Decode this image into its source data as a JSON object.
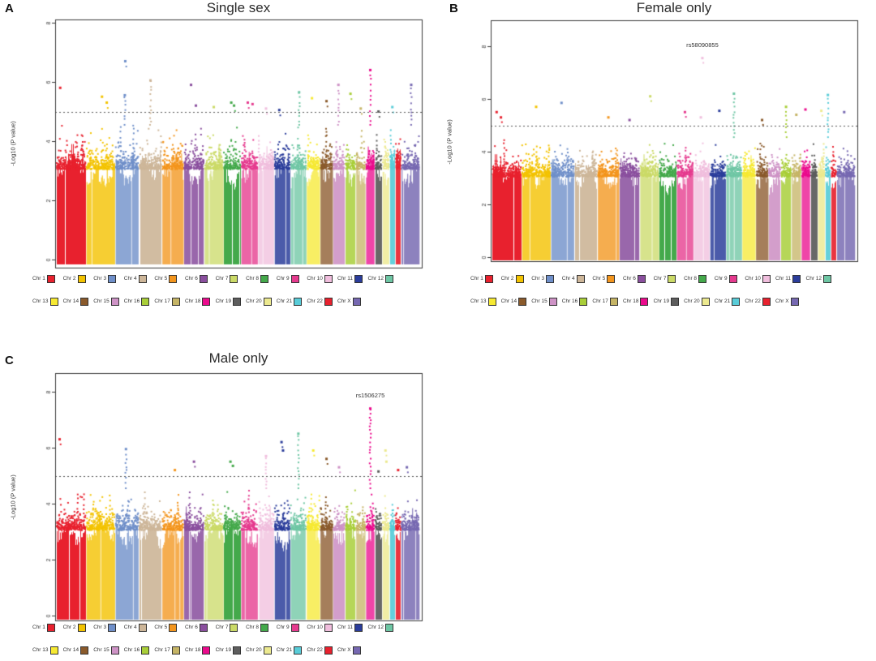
{
  "figure": {
    "background": "#ffffff",
    "axis_color": "#3a3a3a",
    "threshold_color": "#555555",
    "text_color": "#2b2b2b"
  },
  "legend": {
    "chromosomes": [
      {
        "label": "Chr 1",
        "color": "#e8212e",
        "rel": 1.0
      },
      {
        "label": "Chr 2",
        "color": "#f3c300",
        "rel": 0.98
      },
      {
        "label": "Chr 3",
        "color": "#6f8fc9",
        "rel": 0.8
      },
      {
        "label": "Chr 4",
        "color": "#cdb699",
        "rel": 0.77
      },
      {
        "label": "Chr 5",
        "color": "#f3951d",
        "rel": 0.73
      },
      {
        "label": "Chr 6",
        "color": "#8a4f9e",
        "rel": 0.69
      },
      {
        "label": "Chr 7",
        "color": "#cbda67",
        "rel": 0.64
      },
      {
        "label": "Chr 8",
        "color": "#44a94b",
        "rel": 0.59
      },
      {
        "label": "Chr 9",
        "color": "#e53a8e",
        "rel": 0.57
      },
      {
        "label": "Chr 10",
        "color": "#f0bedd",
        "rel": 0.55
      },
      {
        "label": "Chr 11",
        "color": "#2b3d9b",
        "rel": 0.54
      },
      {
        "label": "Chr 12",
        "color": "#6ec6a4",
        "rel": 0.54
      },
      {
        "label": "Chr 13",
        "color": "#f6e932",
        "rel": 0.46
      },
      {
        "label": "Chr 14",
        "color": "#8a5a2b",
        "rel": 0.43
      },
      {
        "label": "Chr 15",
        "color": "#ce93c6",
        "rel": 0.41
      },
      {
        "label": "Chr 16",
        "color": "#a9ce39",
        "rel": 0.36
      },
      {
        "label": "Chr 17",
        "color": "#c5b465",
        "rel": 0.33
      },
      {
        "label": "Chr 18",
        "color": "#ea0a8c",
        "rel": 0.31
      },
      {
        "label": "Chr 19",
        "color": "#5d5d5d",
        "rel": 0.24
      },
      {
        "label": "Chr 20",
        "color": "#ece98f",
        "rel": 0.25
      },
      {
        "label": "Chr 21",
        "color": "#59ccd8",
        "rel": 0.19
      },
      {
        "label": "Chr 22",
        "color": "#e8212e",
        "rel": 0.2
      },
      {
        "label": "Chr X",
        "color": "#7668b1",
        "rel": 0.62
      }
    ]
  },
  "chart_data": [
    {
      "type": "scatter",
      "panel_label": "A",
      "title": "Single sex",
      "ylabel": "-Log10 (P value)",
      "yticks": [
        0,
        2,
        4,
        6,
        8
      ],
      "ylim": [
        0,
        8.2
      ],
      "threshold": 5,
      "grid": false,
      "legend_position": "bottom",
      "annotation": null,
      "series": [
        {
          "name": "Chr 1",
          "base_max": 4.7,
          "peaks": [
            [
              0.12,
              5.8,
              0
            ]
          ]
        },
        {
          "name": "Chr 2",
          "base_max": 4.6,
          "peaks": [
            [
              0.55,
              5.5,
              0
            ],
            [
              0.72,
              5.3,
              0
            ]
          ]
        },
        {
          "name": "Chr 3",
          "base_max": 4.7,
          "peaks": [
            [
              0.42,
              6.7,
              0
            ],
            [
              0.4,
              5.55,
              1
            ]
          ]
        },
        {
          "name": "Chr 4",
          "base_max": 4.6,
          "peaks": [
            [
              0.5,
              6.05,
              1
            ]
          ]
        },
        {
          "name": "Chr 5",
          "base_max": 4.4,
          "peaks": []
        },
        {
          "name": "Chr 6",
          "base_max": 4.6,
          "peaks": [
            [
              0.35,
              5.9,
              0
            ],
            [
              0.6,
              5.2,
              0
            ]
          ]
        },
        {
          "name": "Chr 7",
          "base_max": 4.7,
          "peaks": [
            [
              0.5,
              5.15,
              0
            ]
          ]
        },
        {
          "name": "Chr 8",
          "base_max": 4.8,
          "peaks": [
            [
              0.45,
              5.3,
              0
            ],
            [
              0.62,
              5.2,
              0
            ]
          ]
        },
        {
          "name": "Chr 9",
          "base_max": 4.6,
          "peaks": [
            [
              0.4,
              5.3,
              0
            ],
            [
              0.7,
              5.25,
              0
            ]
          ]
        },
        {
          "name": "Chr 10",
          "base_max": 4.4,
          "peaks": [
            [
              0.5,
              5.1,
              0
            ]
          ]
        },
        {
          "name": "Chr 11",
          "base_max": 4.5,
          "peaks": [
            [
              0.3,
              5.05,
              0
            ]
          ]
        },
        {
          "name": "Chr 12",
          "base_max": 4.7,
          "peaks": [
            [
              0.55,
              5.65,
              1
            ]
          ]
        },
        {
          "name": "Chr 13",
          "base_max": 4.6,
          "peaks": [
            [
              0.4,
              5.45,
              0
            ]
          ]
        },
        {
          "name": "Chr 14",
          "base_max": 4.7,
          "peaks": [
            [
              0.5,
              5.35,
              0
            ]
          ]
        },
        {
          "name": "Chr 15",
          "base_max": 4.5,
          "peaks": [
            [
              0.45,
              5.9,
              1
            ]
          ]
        },
        {
          "name": "Chr 16",
          "base_max": 4.6,
          "peaks": [
            [
              0.5,
              5.6,
              0
            ]
          ]
        },
        {
          "name": "Chr 17",
          "base_max": 4.4,
          "peaks": [
            [
              0.5,
              5.1,
              0
            ]
          ]
        },
        {
          "name": "Chr 18",
          "base_max": 4.5,
          "peaks": [
            [
              0.5,
              6.4,
              1
            ]
          ]
        },
        {
          "name": "Chr 19",
          "base_max": 4.6,
          "peaks": [
            [
              0.5,
              5.0,
              0
            ]
          ]
        },
        {
          "name": "Chr 20",
          "base_max": 4.3,
          "peaks": []
        },
        {
          "name": "Chr 21",
          "base_max": 4.4,
          "peaks": [
            [
              0.5,
              5.15,
              0
            ]
          ]
        },
        {
          "name": "Chr 22",
          "base_max": 4.3,
          "peaks": []
        },
        {
          "name": "Chr X",
          "base_max": 4.4,
          "peaks": [
            [
              0.55,
              5.9,
              1
            ]
          ]
        }
      ]
    },
    {
      "type": "scatter",
      "panel_label": "B",
      "title": "Female only",
      "ylabel": "-Log10 (P value)",
      "yticks": [
        0,
        2,
        4,
        6,
        8
      ],
      "ylim": [
        0,
        9.0
      ],
      "threshold": 5,
      "grid": false,
      "legend_position": "bottom",
      "annotation": {
        "text": "rs58090855",
        "chrom": "Chr 10",
        "value": 7.55
      },
      "series": [
        {
          "name": "Chr 1",
          "base_max": 4.6,
          "peaks": [
            [
              0.15,
              5.5,
              0
            ],
            [
              0.3,
              5.3,
              0
            ]
          ]
        },
        {
          "name": "Chr 2",
          "base_max": 4.5,
          "peaks": [
            [
              0.5,
              5.7,
              0
            ]
          ]
        },
        {
          "name": "Chr 3",
          "base_max": 4.6,
          "peaks": [
            [
              0.45,
              5.85,
              0
            ]
          ]
        },
        {
          "name": "Chr 4",
          "base_max": 4.3,
          "peaks": []
        },
        {
          "name": "Chr 5",
          "base_max": 4.5,
          "peaks": [
            [
              0.5,
              5.3,
              0
            ]
          ]
        },
        {
          "name": "Chr 6",
          "base_max": 4.4,
          "peaks": [
            [
              0.5,
              5.2,
              0
            ]
          ]
        },
        {
          "name": "Chr 7",
          "base_max": 4.5,
          "peaks": [
            [
              0.55,
              6.1,
              0
            ]
          ]
        },
        {
          "name": "Chr 8",
          "base_max": 4.4,
          "peaks": []
        },
        {
          "name": "Chr 9",
          "base_max": 4.5,
          "peaks": [
            [
              0.5,
              5.5,
              0
            ]
          ]
        },
        {
          "name": "Chr 10",
          "base_max": 4.4,
          "peaks": [
            [
              0.55,
              7.55,
              0
            ],
            [
              0.45,
              5.3,
              0
            ]
          ]
        },
        {
          "name": "Chr 11",
          "base_max": 4.5,
          "peaks": [
            [
              0.6,
              5.55,
              0
            ]
          ]
        },
        {
          "name": "Chr 12",
          "base_max": 4.6,
          "peaks": [
            [
              0.5,
              6.2,
              1
            ]
          ]
        },
        {
          "name": "Chr 13",
          "base_max": 4.4,
          "peaks": []
        },
        {
          "name": "Chr 14",
          "base_max": 4.5,
          "peaks": [
            [
              0.5,
              5.2,
              0
            ]
          ]
        },
        {
          "name": "Chr 15",
          "base_max": 4.3,
          "peaks": []
        },
        {
          "name": "Chr 16",
          "base_max": 4.6,
          "peaks": [
            [
              0.5,
              5.7,
              1
            ]
          ]
        },
        {
          "name": "Chr 17",
          "base_max": 4.4,
          "peaks": [
            [
              0.5,
              5.4,
              0
            ]
          ]
        },
        {
          "name": "Chr 18",
          "base_max": 4.5,
          "peaks": [
            [
              0.45,
              5.6,
              0
            ]
          ]
        },
        {
          "name": "Chr 19",
          "base_max": 4.4,
          "peaks": []
        },
        {
          "name": "Chr 20",
          "base_max": 4.4,
          "peaks": [
            [
              0.5,
              5.55,
              0
            ]
          ]
        },
        {
          "name": "Chr 21",
          "base_max": 4.3,
          "peaks": [
            [
              0.5,
              6.15,
              1
            ]
          ]
        },
        {
          "name": "Chr 22",
          "base_max": 4.3,
          "peaks": []
        },
        {
          "name": "Chr X",
          "base_max": 4.4,
          "peaks": [
            [
              0.4,
              5.5,
              0
            ]
          ]
        }
      ]
    },
    {
      "type": "scatter",
      "panel_label": "C",
      "title": "Male only",
      "ylabel": "-Log10 (P value)",
      "yticks": [
        0,
        2,
        4,
        6,
        8
      ],
      "ylim": [
        0,
        8.7
      ],
      "threshold": 5,
      "grid": false,
      "legend_position": "bottom",
      "annotation": {
        "text": "rs1506275",
        "chrom": "Chr 18",
        "value": 7.4
      },
      "series": [
        {
          "name": "Chr 1",
          "base_max": 4.6,
          "peaks": [
            [
              0.1,
              6.3,
              0
            ]
          ]
        },
        {
          "name": "Chr 2",
          "base_max": 4.5,
          "peaks": []
        },
        {
          "name": "Chr 3",
          "base_max": 4.6,
          "peaks": [
            [
              0.45,
              5.95,
              1
            ]
          ]
        },
        {
          "name": "Chr 4",
          "base_max": 4.5,
          "peaks": []
        },
        {
          "name": "Chr 5",
          "base_max": 4.4,
          "peaks": [
            [
              0.6,
              5.2,
              0
            ]
          ]
        },
        {
          "name": "Chr 6",
          "base_max": 4.5,
          "peaks": [
            [
              0.5,
              5.5,
              0
            ]
          ]
        },
        {
          "name": "Chr 7",
          "base_max": 4.5,
          "peaks": []
        },
        {
          "name": "Chr 8",
          "base_max": 4.7,
          "peaks": [
            [
              0.4,
              5.5,
              0
            ],
            [
              0.55,
              5.35,
              0
            ]
          ]
        },
        {
          "name": "Chr 9",
          "base_max": 4.5,
          "peaks": []
        },
        {
          "name": "Chr 10",
          "base_max": 4.5,
          "peaks": [
            [
              0.5,
              5.7,
              1
            ]
          ]
        },
        {
          "name": "Chr 11",
          "base_max": 4.6,
          "peaks": [
            [
              0.45,
              6.2,
              0
            ],
            [
              0.55,
              5.9,
              0
            ]
          ]
        },
        {
          "name": "Chr 12",
          "base_max": 4.5,
          "peaks": [
            [
              0.5,
              6.5,
              1
            ]
          ]
        },
        {
          "name": "Chr 13",
          "base_max": 4.5,
          "peaks": [
            [
              0.5,
              5.9,
              0
            ]
          ]
        },
        {
          "name": "Chr 14",
          "base_max": 4.6,
          "peaks": [
            [
              0.5,
              5.6,
              0
            ]
          ]
        },
        {
          "name": "Chr 15",
          "base_max": 4.4,
          "peaks": [
            [
              0.5,
              5.3,
              0
            ]
          ]
        },
        {
          "name": "Chr 16",
          "base_max": 4.5,
          "peaks": []
        },
        {
          "name": "Chr 17",
          "base_max": 4.4,
          "peaks": []
        },
        {
          "name": "Chr 18",
          "base_max": 4.4,
          "peaks": [
            [
              0.5,
              7.4,
              1
            ]
          ]
        },
        {
          "name": "Chr 19",
          "base_max": 4.6,
          "peaks": [
            [
              0.5,
              5.15,
              0
            ]
          ]
        },
        {
          "name": "Chr 20",
          "base_max": 4.5,
          "peaks": [
            [
              0.45,
              5.9,
              0
            ],
            [
              0.6,
              5.5,
              0
            ]
          ]
        },
        {
          "name": "Chr 21",
          "base_max": 4.3,
          "peaks": []
        },
        {
          "name": "Chr 22",
          "base_max": 4.4,
          "peaks": [
            [
              0.5,
              5.2,
              0
            ]
          ]
        },
        {
          "name": "Chr X",
          "base_max": 4.4,
          "peaks": [
            [
              0.3,
              5.3,
              0
            ]
          ]
        }
      ]
    }
  ]
}
